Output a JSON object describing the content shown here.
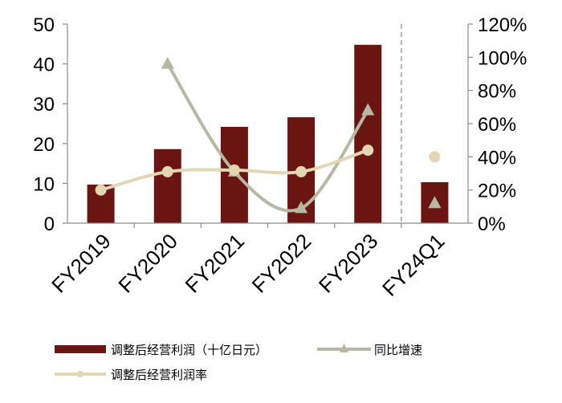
{
  "chart_data": {
    "type": "bar",
    "categories": [
      "FY2019",
      "FY2020",
      "FY2021",
      "FY2022",
      "FY2023",
      "FY24Q1"
    ],
    "left_axis": {
      "ticks": [
        "0",
        "10",
        "20",
        "30",
        "40",
        "50"
      ],
      "ylim": [
        0,
        50
      ]
    },
    "right_axis": {
      "ticks": [
        "0%",
        "20%",
        "40%",
        "60%",
        "80%",
        "100%",
        "120%"
      ],
      "ylim": [
        0,
        120
      ]
    },
    "series": [
      {
        "name": "调整后经营利润（十亿日元）",
        "type": "bar",
        "axis": "left",
        "color": "#6b1512",
        "values": [
          9.7,
          18.6,
          24.2,
          26.6,
          44.8,
          10.3
        ]
      },
      {
        "name": "同比增速",
        "type": "line",
        "axis": "right",
        "color": "#b6b8a3",
        "marker": "triangle",
        "values": [
          null,
          96,
          31,
          9,
          68,
          12
        ]
      },
      {
        "name": "调整后经营利润率",
        "type": "line",
        "axis": "right",
        "color": "#e3d6b3",
        "marker": "circle",
        "values": [
          20,
          31,
          32,
          31,
          44,
          40
        ]
      }
    ],
    "grid": false,
    "divider_after": "FY2023",
    "legend_position": "bottom"
  }
}
